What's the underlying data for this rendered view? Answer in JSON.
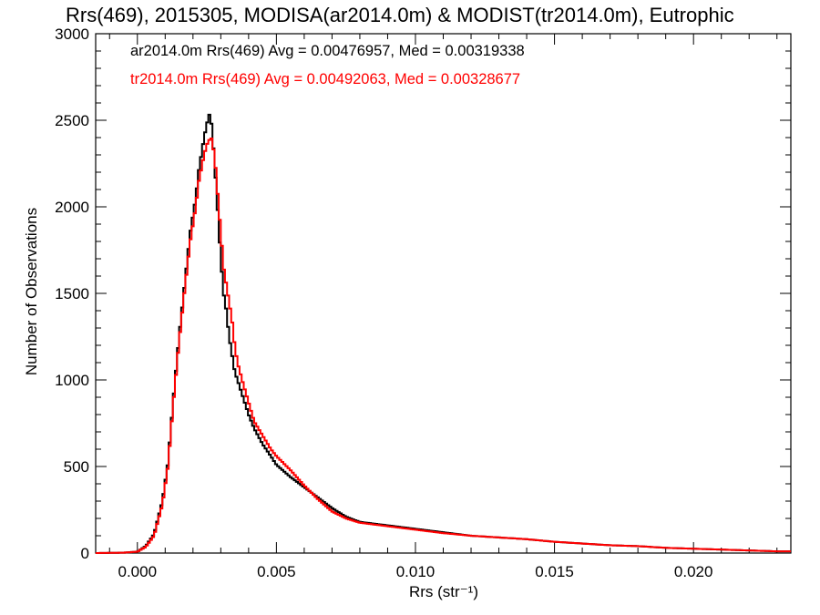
{
  "chart_data": {
    "type": "line",
    "title": "Rrs(469), 2015305, MODISA(ar2014.0m) & MODIST(tr2014.0m), Eutrophic",
    "xlabel": "Rrs (str⁻¹)",
    "ylabel": "Number of Observations",
    "xlim": [
      -0.0015,
      0.0235
    ],
    "ylim": [
      0,
      3000
    ],
    "x_ticks": [
      0.0,
      0.005,
      0.01,
      0.015,
      0.02
    ],
    "x_tick_labels": [
      "0.000",
      "0.005",
      "0.010",
      "0.015",
      "0.020"
    ],
    "y_ticks": [
      0,
      500,
      1000,
      1500,
      2000,
      2500,
      3000
    ],
    "y_tick_labels": [
      "0",
      "500",
      "1000",
      "1500",
      "2000",
      "2500",
      "3000"
    ],
    "grid": false,
    "legend_position": "top-left",
    "series": [
      {
        "name": "ar2014.0m",
        "color": "#000000",
        "legend_text": "ar2014.0m Rrs(469) Avg = 0.00476957, Med = 0.00319338",
        "x": [
          -0.0015,
          -0.0005,
          0.0,
          0.0003,
          0.0006,
          0.0009,
          0.0011,
          0.0013,
          0.0015,
          0.0017,
          0.0019,
          0.0021,
          0.0022,
          0.0023,
          0.0024,
          0.0025,
          0.0026,
          0.00265,
          0.0027,
          0.0028,
          0.0029,
          0.003,
          0.0031,
          0.0032,
          0.0033,
          0.0034,
          0.0035,
          0.0036,
          0.0038,
          0.004,
          0.0042,
          0.0045,
          0.0048,
          0.005,
          0.0055,
          0.006,
          0.0065,
          0.007,
          0.0075,
          0.008,
          0.009,
          0.01,
          0.011,
          0.012,
          0.013,
          0.014,
          0.015,
          0.016,
          0.017,
          0.018,
          0.019,
          0.02,
          0.021,
          0.022,
          0.023
        ],
        "y": [
          0,
          2,
          8,
          40,
          110,
          300,
          520,
          900,
          1250,
          1550,
          1850,
          2050,
          2200,
          2300,
          2400,
          2480,
          2540,
          2500,
          2420,
          2200,
          1950,
          1700,
          1500,
          1400,
          1250,
          1150,
          1050,
          1000,
          900,
          800,
          720,
          630,
          560,
          510,
          440,
          380,
          320,
          260,
          210,
          180,
          160,
          140,
          120,
          100,
          90,
          80,
          65,
          55,
          45,
          40,
          30,
          25,
          20,
          15,
          10
        ]
      },
      {
        "name": "tr2014.0m",
        "color": "#ff0000",
        "legend_text": "tr2014.0m Rrs(469) Avg = 0.00492063, Med = 0.00328677",
        "x": [
          -0.0015,
          -0.0005,
          0.0,
          0.0003,
          0.0006,
          0.0009,
          0.0011,
          0.0013,
          0.0015,
          0.0017,
          0.0019,
          0.0021,
          0.0022,
          0.0023,
          0.0024,
          0.0025,
          0.0026,
          0.00265,
          0.0027,
          0.0028,
          0.0029,
          0.003,
          0.0031,
          0.0032,
          0.0033,
          0.0034,
          0.0035,
          0.0036,
          0.0038,
          0.004,
          0.0042,
          0.0045,
          0.0048,
          0.005,
          0.0055,
          0.006,
          0.0065,
          0.007,
          0.0075,
          0.008,
          0.009,
          0.01,
          0.011,
          0.012,
          0.013,
          0.014,
          0.015,
          0.016,
          0.017,
          0.018,
          0.019,
          0.02,
          0.021,
          0.022,
          0.023
        ],
        "y": [
          0,
          2,
          8,
          35,
          100,
          280,
          500,
          880,
          1220,
          1520,
          1800,
          2000,
          2140,
          2220,
          2300,
          2360,
          2390,
          2400,
          2380,
          2250,
          2050,
          1850,
          1650,
          1550,
          1450,
          1350,
          1200,
          1100,
          980,
          870,
          760,
          680,
          600,
          560,
          480,
          390,
          310,
          240,
          200,
          175,
          155,
          135,
          115,
          100,
          90,
          80,
          65,
          55,
          45,
          40,
          30,
          25,
          20,
          15,
          10
        ]
      }
    ]
  }
}
